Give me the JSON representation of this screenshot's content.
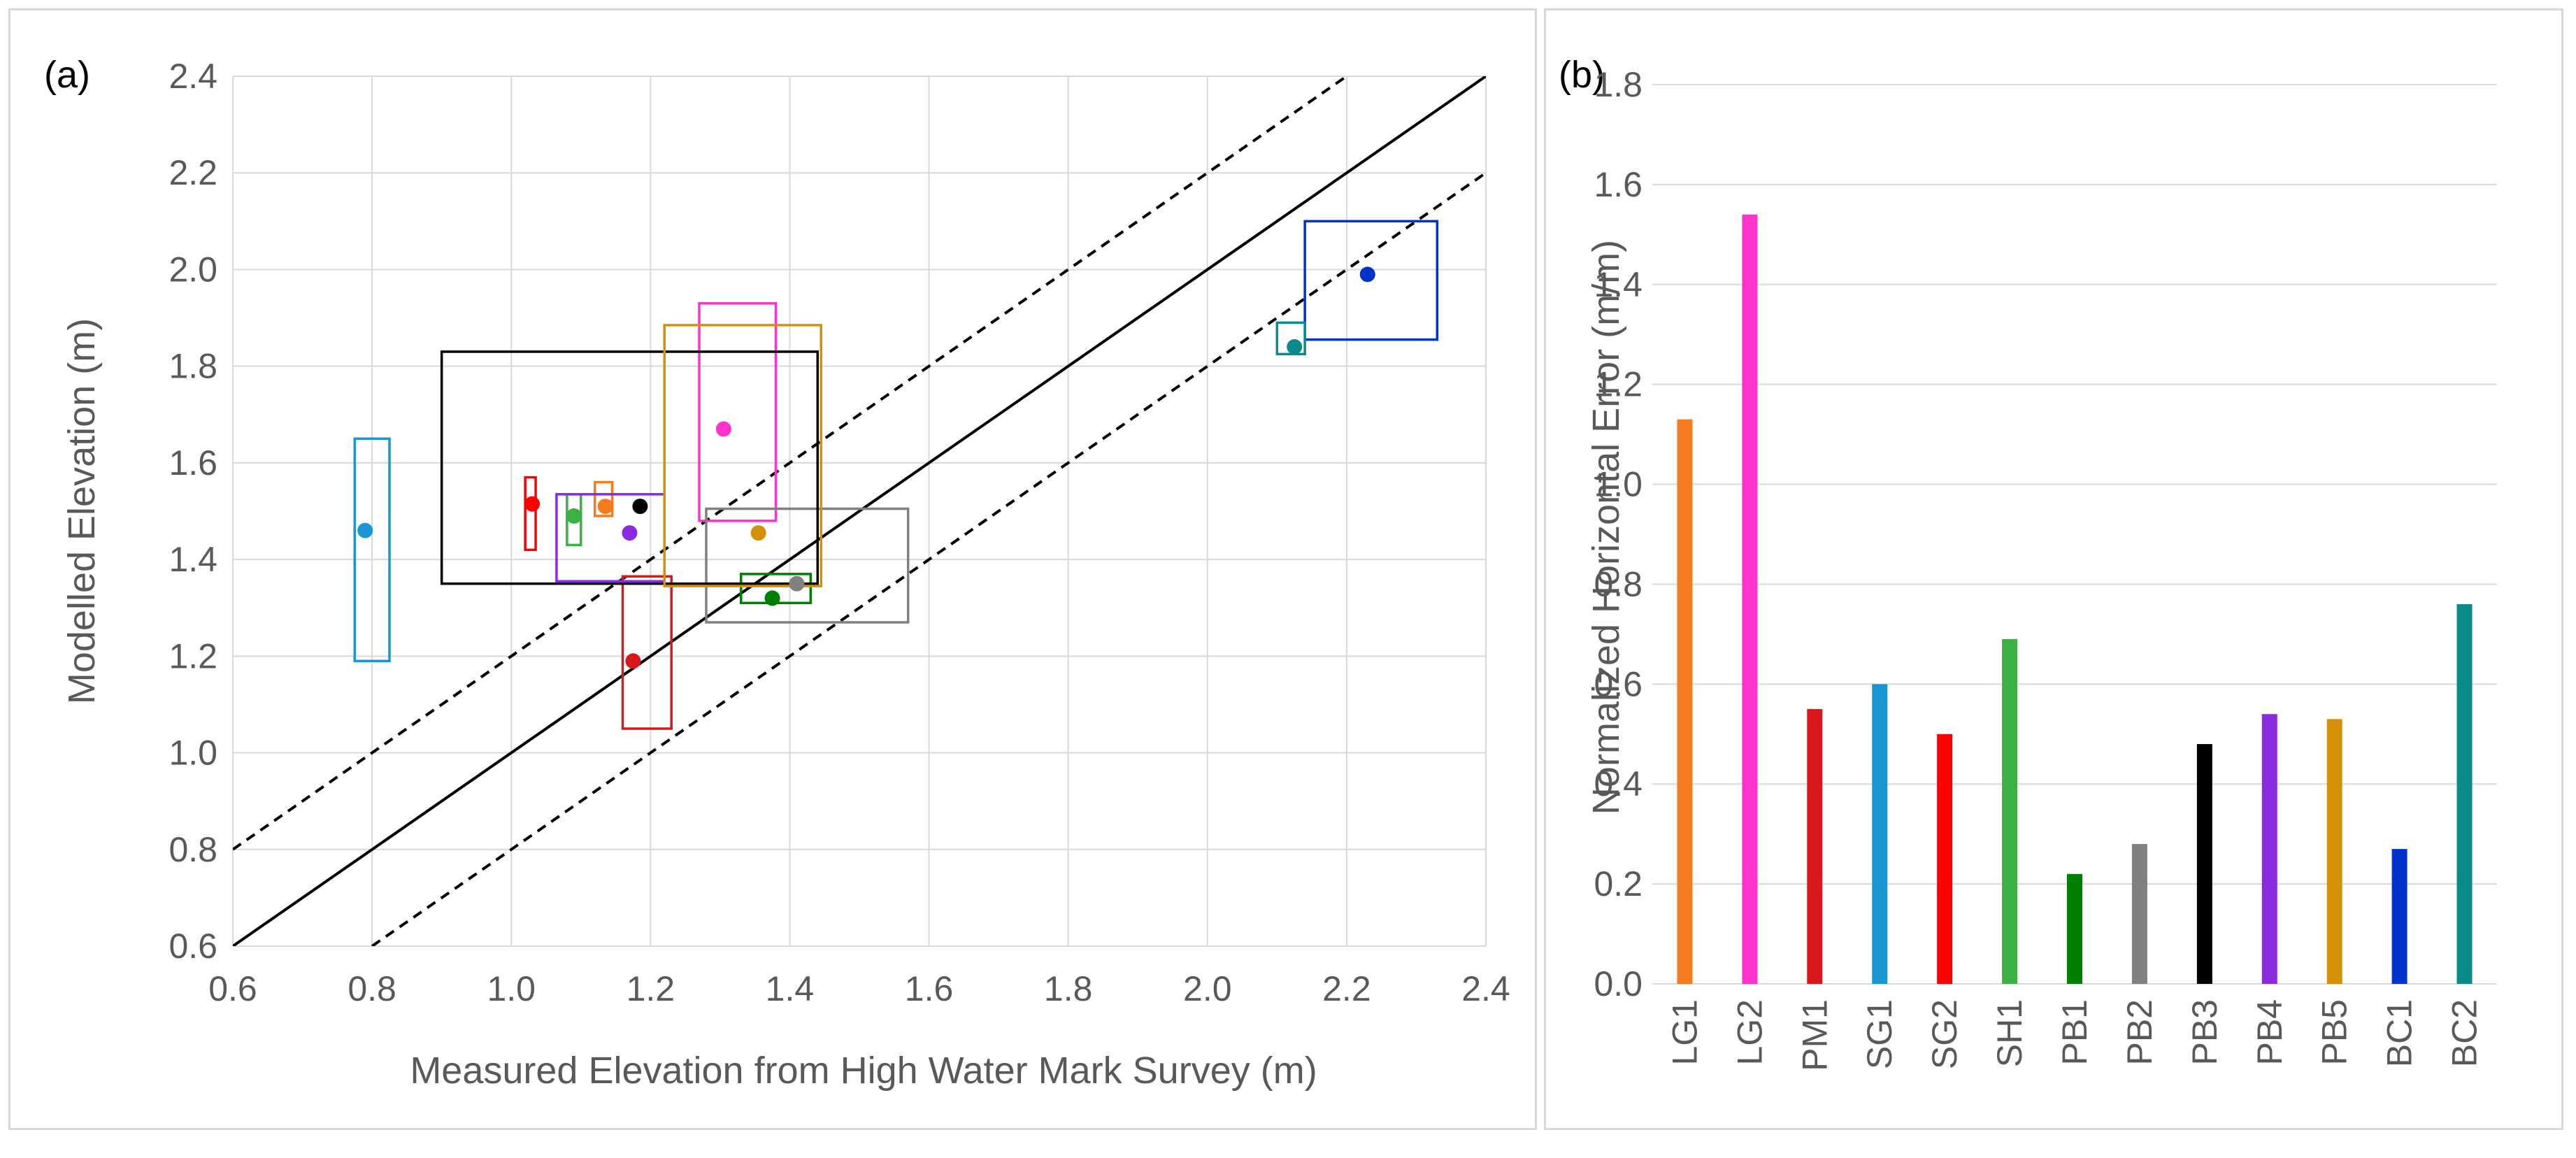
{
  "chart_data": [
    {
      "type": "scatter",
      "panel_label": "(a)",
      "xlabel": "Measured Elevation from High Water Mark Survey (m)",
      "ylabel": "Modelled Elevation (m)",
      "xlim": [
        0.6,
        2.4
      ],
      "ylim": [
        0.6,
        2.4
      ],
      "x_ticks": [
        "0.6",
        "0.8",
        "1.0",
        "1.2",
        "1.4",
        "1.6",
        "1.8",
        "2.0",
        "2.2",
        "2.4"
      ],
      "y_ticks": [
        "0.6",
        "0.8",
        "1.0",
        "1.2",
        "1.4",
        "1.6",
        "1.8",
        "2.0",
        "2.2",
        "2.4"
      ],
      "grid": true,
      "reference_lines": [
        {
          "name": "1:1",
          "style": "solid",
          "points": [
            [
              0.6,
              0.6
            ],
            [
              2.4,
              2.4
            ]
          ]
        },
        {
          "name": "+0.2 m",
          "style": "dashed",
          "points": [
            [
              0.6,
              0.8
            ],
            [
              2.2,
              2.4
            ]
          ]
        },
        {
          "name": "-0.2 m",
          "style": "dashed",
          "points": [
            [
              0.8,
              0.6
            ],
            [
              2.4,
              2.2
            ]
          ]
        }
      ],
      "points": [
        {
          "id": "LG1",
          "color": "#f47b20",
          "x": 1.135,
          "y": 1.51,
          "box": {
            "x": [
              1.12,
              1.145
            ],
            "y": [
              1.49,
              1.56
            ]
          }
        },
        {
          "id": "LG2",
          "color": "#ff33cc",
          "x": 1.305,
          "y": 1.67,
          "box": {
            "x": [
              1.27,
              1.38
            ],
            "y": [
              1.48,
              1.93
            ]
          }
        },
        {
          "id": "PM1",
          "color": "#d7191c",
          "x": 1.175,
          "y": 1.19,
          "box": {
            "x": [
              1.16,
              1.23
            ],
            "y": [
              1.05,
              1.365
            ]
          }
        },
        {
          "id": "SG1",
          "color": "#1a96d4",
          "x": 0.79,
          "y": 1.46,
          "box": {
            "x": [
              0.775,
              0.825
            ],
            "y": [
              1.19,
              1.65
            ]
          }
        },
        {
          "id": "SG2",
          "color": "#ff0000",
          "x": 1.03,
          "y": 1.515,
          "box": {
            "x": [
              1.02,
              1.035
            ],
            "y": [
              1.42,
              1.57
            ]
          }
        },
        {
          "id": "SH1",
          "color": "#3cb043",
          "x": 1.09,
          "y": 1.49,
          "box": {
            "x": [
              1.08,
              1.1
            ],
            "y": [
              1.43,
              1.535
            ]
          }
        },
        {
          "id": "PB1",
          "color": "#008000",
          "x": 1.375,
          "y": 1.32,
          "box": {
            "x": [
              1.33,
              1.43
            ],
            "y": [
              1.31,
              1.37
            ]
          }
        },
        {
          "id": "PB2",
          "color": "#808080",
          "x": 1.41,
          "y": 1.35,
          "box": {
            "x": [
              1.28,
              1.57
            ],
            "y": [
              1.27,
              1.505
            ]
          }
        },
        {
          "id": "PB3",
          "color": "#000000",
          "x": 1.185,
          "y": 1.51,
          "box": {
            "x": [
              0.9,
              1.44
            ],
            "y": [
              1.35,
              1.83
            ]
          }
        },
        {
          "id": "PB4",
          "color": "#8a2be2",
          "x": 1.17,
          "y": 1.455,
          "box": {
            "x": [
              1.065,
              1.22
            ],
            "y": [
              1.355,
              1.535
            ]
          }
        },
        {
          "id": "PB5",
          "color": "#d4900a",
          "x": 1.355,
          "y": 1.455,
          "box": {
            "x": [
              1.22,
              1.445
            ],
            "y": [
              1.345,
              1.885
            ]
          }
        },
        {
          "id": "BC1",
          "color": "#0033cc",
          "x": 2.23,
          "y": 1.99,
          "box": {
            "x": [
              2.14,
              2.33
            ],
            "y": [
              1.855,
              2.1
            ]
          }
        },
        {
          "id": "BC2",
          "color": "#0b8a8a",
          "x": 2.125,
          "y": 1.84,
          "box": {
            "x": [
              2.1,
              2.14
            ],
            "y": [
              1.825,
              1.89
            ]
          }
        }
      ]
    },
    {
      "type": "bar",
      "panel_label": "(b)",
      "xlabel": "",
      "ylabel": "Normalized Horizontal Error (m/m)",
      "ylim": [
        0.0,
        1.8
      ],
      "y_ticks": [
        "0.0",
        "0.2",
        "0.4",
        "0.6",
        "0.8",
        "1.0",
        "1.2",
        "1.4",
        "1.6",
        "1.8"
      ],
      "grid": true,
      "categories": [
        "LG1",
        "LG2",
        "PM1",
        "SG1",
        "SG2",
        "SH1",
        "PB1",
        "PB2",
        "PB3",
        "PB4",
        "PB5",
        "BC1",
        "BC2"
      ],
      "values": [
        1.13,
        1.54,
        0.55,
        0.6,
        0.5,
        0.69,
        0.22,
        0.28,
        0.48,
        0.54,
        0.53,
        0.27,
        0.76
      ],
      "colors": [
        "#f47b20",
        "#ff33cc",
        "#d7191c",
        "#1a96d4",
        "#ff0000",
        "#3cb043",
        "#008000",
        "#808080",
        "#000000",
        "#8a2be2",
        "#d4900a",
        "#0033cc",
        "#0b8a8a"
      ]
    }
  ]
}
